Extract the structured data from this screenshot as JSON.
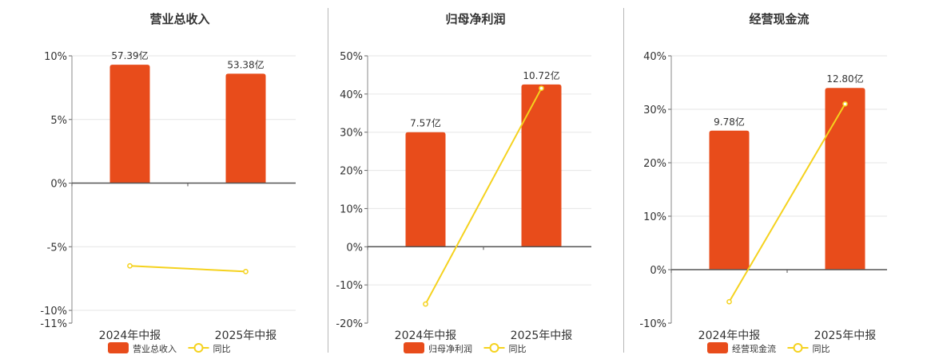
{
  "chart_data": [
    {
      "type": "bar",
      "title": "营业总收入",
      "categories": [
        "2024年中报",
        "2025年中报"
      ],
      "series": [
        {
          "name": "营业总收入",
          "type": "bar",
          "values": [
            9.3,
            8.6
          ],
          "labels": [
            "57.39亿",
            "53.38亿"
          ],
          "color": "#e84c1b"
        },
        {
          "name": "同比",
          "type": "line",
          "values": [
            -6.5,
            -6.95
          ],
          "color": "#f5d21e"
        }
      ],
      "ylim": [
        -11,
        10
      ],
      "yticks": [
        10,
        5,
        0,
        -5,
        -10,
        -11
      ],
      "ytick_labels": [
        "10%",
        "5%",
        "0%",
        "-5%",
        "-10%",
        "-11%"
      ],
      "grid": true,
      "legend": "bottom"
    },
    {
      "type": "bar",
      "title": "归母净利润",
      "categories": [
        "2024年中报",
        "2025年中报"
      ],
      "series": [
        {
          "name": "归母净利润",
          "type": "bar",
          "values": [
            30,
            42.5
          ],
          "labels": [
            "7.57亿",
            "10.72亿"
          ],
          "color": "#e84c1b"
        },
        {
          "name": "同比",
          "type": "line",
          "values": [
            -15,
            41.5
          ],
          "color": "#f5d21e"
        }
      ],
      "ylim": [
        -20,
        50
      ],
      "yticks": [
        50,
        40,
        30,
        20,
        10,
        0,
        -10,
        -20
      ],
      "ytick_labels": [
        "50%",
        "40%",
        "30%",
        "20%",
        "10%",
        "0%",
        "-10%",
        "-20%"
      ],
      "grid": true,
      "legend": "bottom"
    },
    {
      "type": "bar",
      "title": "经营现金流",
      "categories": [
        "2024年中报",
        "2025年中报"
      ],
      "series": [
        {
          "name": "经营现金流",
          "type": "bar",
          "values": [
            26,
            34
          ],
          "labels": [
            "9.78亿",
            "12.80亿"
          ],
          "color": "#e84c1b"
        },
        {
          "name": "同比",
          "type": "line",
          "values": [
            -6,
            31
          ],
          "color": "#f5d21e"
        }
      ],
      "ylim": [
        -10,
        40
      ],
      "yticks": [
        40,
        30,
        20,
        10,
        0,
        -10
      ],
      "ytick_labels": [
        "40%",
        "30%",
        "20%",
        "10%",
        "0%",
        "-10%"
      ],
      "grid": true,
      "legend": "bottom"
    }
  ]
}
